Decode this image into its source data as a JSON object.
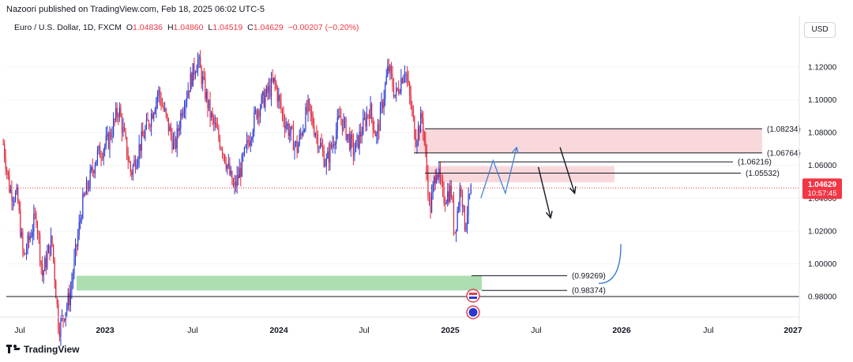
{
  "publisher": "Nazoori published on TradingView.com, Feb 18, 2025 06:02 UTC-5",
  "symbol": {
    "name": "Euro / U.S. Dollar, 1D, FXCM",
    "open_label": "O",
    "open": "1.04836",
    "high_label": "H",
    "high": "1.04860",
    "low_label": "L",
    "low": "1.04519",
    "close_label": "C",
    "close": "1.04629",
    "change": "−0.00207 (−0.20%)"
  },
  "currency_button": "USD",
  "current_price": {
    "value": "1.04629",
    "countdown": "10:57:45"
  },
  "footer_brand": "TradingView",
  "colors": {
    "candle_up": "#2a3bd1",
    "candle_down": "#e0263a",
    "resistance_zone": "#f8d1d6",
    "support_zone": "#9ed8a3",
    "projection": "#3a7bd5",
    "price_line": "#f23645"
  },
  "chart_data": {
    "type": "candlestick",
    "y_axis": {
      "ticks": [
        "1.12000",
        "1.10000",
        "1.08000",
        "1.06000",
        "1.04000",
        "1.02000",
        "1.00000",
        "0.98000"
      ],
      "range": [
        0.965,
        1.135
      ]
    },
    "x_axis": {
      "ticks": [
        "Jul",
        "2023",
        "Jul",
        "2024",
        "Jul",
        "2025",
        "Jul",
        "2026",
        "Jul",
        "2027"
      ]
    },
    "levels": [
      {
        "label": "(1.08234)",
        "value": 1.08234
      },
      {
        "label": "(1.06764)",
        "value": 1.06764
      },
      {
        "label": "(1.06216)",
        "value": 1.06216
      },
      {
        "label": "(1.05532)",
        "value": 1.05532
      },
      {
        "label": "(0.99269)",
        "value": 0.99269
      },
      {
        "label": "(0.98374)",
        "value": 0.98374
      }
    ],
    "zones": [
      {
        "name": "resistance-upper",
        "from": 1.0676,
        "to": 1.0823
      },
      {
        "name": "resistance-lower",
        "from": 1.0497,
        "to": 1.0595
      },
      {
        "name": "support",
        "from": 0.9837,
        "to": 0.9927
      }
    ],
    "support_line": 0.98,
    "price_path": [
      [
        "2022-06-01",
        1.073
      ],
      [
        "2022-06-15",
        1.045
      ],
      [
        "2022-07-01",
        1.04
      ],
      [
        "2022-07-14",
        1.003
      ],
      [
        "2022-08-10",
        1.03
      ],
      [
        "2022-08-23",
        0.993
      ],
      [
        "2022-09-12",
        1.015
      ],
      [
        "2022-09-27",
        0.96
      ],
      [
        "2022-10-20",
        0.98
      ],
      [
        "2022-11-15",
        1.035
      ],
      [
        "2022-12-15",
        1.065
      ],
      [
        "2023-01-10",
        1.075
      ],
      [
        "2023-02-01",
        1.095
      ],
      [
        "2023-02-27",
        1.055
      ],
      [
        "2023-03-15",
        1.07
      ],
      [
        "2023-04-10",
        1.09
      ],
      [
        "2023-04-26",
        1.105
      ],
      [
        "2023-05-31",
        1.07
      ],
      [
        "2023-06-15",
        1.095
      ],
      [
        "2023-07-18",
        1.125
      ],
      [
        "2023-08-15",
        1.09
      ],
      [
        "2023-09-10",
        1.07
      ],
      [
        "2023-10-03",
        1.045
      ],
      [
        "2023-10-20",
        1.06
      ],
      [
        "2023-11-20",
        1.093
      ],
      [
        "2023-12-28",
        1.111
      ],
      [
        "2024-01-15",
        1.09
      ],
      [
        "2024-02-14",
        1.07
      ],
      [
        "2024-03-08",
        1.095
      ],
      [
        "2024-04-16",
        1.061
      ],
      [
        "2024-05-16",
        1.09
      ],
      [
        "2024-06-14",
        1.068
      ],
      [
        "2024-07-17",
        1.095
      ],
      [
        "2024-08-01",
        1.077
      ],
      [
        "2024-08-26",
        1.12
      ],
      [
        "2024-09-10",
        1.102
      ],
      [
        "2024-09-30",
        1.12
      ],
      [
        "2024-10-23",
        1.077
      ],
      [
        "2024-11-06",
        1.09
      ],
      [
        "2024-11-22",
        1.032
      ],
      [
        "2024-12-06",
        1.06
      ],
      [
        "2024-12-20",
        1.04
      ],
      [
        "2025-01-06",
        1.045
      ],
      [
        "2025-01-13",
        1.018
      ],
      [
        "2025-01-27",
        1.05
      ],
      [
        "2025-02-03",
        1.023
      ],
      [
        "2025-02-18",
        1.046
      ]
    ],
    "projections": [
      {
        "name": "blue-zigzag",
        "points": [
          [
            1.04,
            "2025-03-10"
          ],
          [
            1.063,
            "2025-04-05"
          ],
          [
            1.043,
            "2025-05-01"
          ],
          [
            1.071,
            "2025-05-25"
          ]
        ]
      },
      {
        "name": "black-arrow-1",
        "points": [
          [
            1.059,
            "2025-07-10"
          ],
          [
            1.028,
            "2025-08-05"
          ]
        ]
      },
      {
        "name": "black-arrow-2",
        "points": [
          [
            1.071,
            "2025-08-25"
          ],
          [
            1.043,
            "2025-09-25"
          ]
        ]
      },
      {
        "name": "blue-curve",
        "points": [
          [
            0.988,
            "2025-11-15"
          ],
          [
            1.012,
            "2026-01-01"
          ]
        ]
      }
    ]
  }
}
